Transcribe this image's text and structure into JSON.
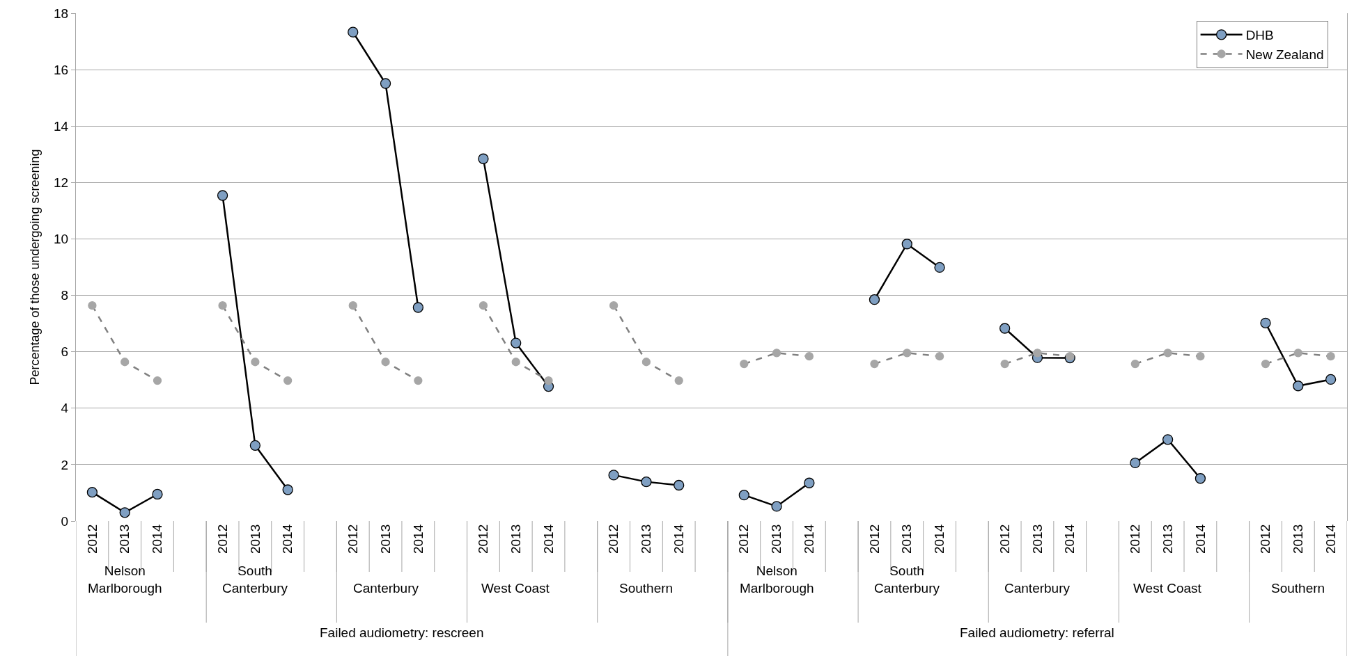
{
  "chart_data": {
    "type": "line",
    "ylabel": "Percentage of those undergoing screening",
    "categories": [
      "2012",
      "2013",
      "2014",
      null,
      "2012",
      "2013",
      "2014",
      null,
      "2012",
      "2013",
      "2014",
      null,
      "2012",
      "2013",
      "2014",
      null,
      "2012",
      "2013",
      "2014",
      null,
      "2012",
      "2013",
      "2014",
      null,
      "2012",
      "2013",
      "2014",
      null,
      "2012",
      "2013",
      "2014",
      null,
      "2012",
      "2013",
      "2014",
      null,
      "2012",
      "2013",
      "2014"
    ],
    "series": [
      {
        "name": "DHB",
        "color": "#7f9fc2",
        "line_style": "solid",
        "values": [
          1.02,
          0.3,
          0.95,
          null,
          11.54,
          2.68,
          1.11,
          null,
          17.33,
          15.51,
          7.57,
          null,
          12.84,
          6.31,
          4.77,
          null,
          1.63,
          1.39,
          1.27,
          null,
          0.92,
          0.52,
          1.35,
          null,
          7.85,
          9.82,
          8.99,
          null,
          6.83,
          5.79,
          5.78,
          null,
          2.06,
          2.89,
          1.51,
          null,
          7.02,
          4.79,
          5.02
        ]
      },
      {
        "name": "New Zealand",
        "color": "#a6a6a6",
        "line_style": "dashed",
        "values": [
          7.64,
          5.64,
          4.98,
          null,
          7.64,
          5.64,
          4.98,
          null,
          7.64,
          5.64,
          4.98,
          null,
          7.64,
          5.64,
          4.98,
          null,
          7.64,
          5.64,
          4.98,
          null,
          5.57,
          5.96,
          5.84,
          null,
          5.57,
          5.96,
          5.84,
          null,
          5.57,
          5.96,
          5.84,
          null,
          5.57,
          5.96,
          5.84,
          null,
          5.57,
          5.96,
          5.84
        ]
      }
    ],
    "annotations": [
      "Nelson\nMarlborough",
      "South\nCanterbury",
      "Canterbury",
      "West Coast",
      "Southern",
      "Nelson\nMarlborough",
      "South\nCanterbury",
      "Canterbury",
      "West Coast",
      "Southern",
      "Failed audiometry: rescreen",
      "Failed audiometry: referral"
    ],
    "ylim": [
      0,
      18
    ],
    "yticks": [
      0,
      2,
      4,
      6,
      8,
      10,
      12,
      14,
      16,
      18
    ],
    "grid": "y",
    "legend": "top right",
    "marker": "circle"
  }
}
